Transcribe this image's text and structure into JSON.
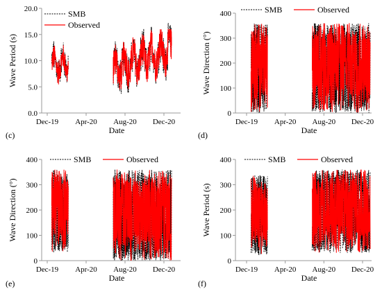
{
  "shared": {
    "x_ticks": [
      "Dec-19",
      "Apr-20",
      "Aug-20",
      "Dec-20"
    ],
    "xlabel": "Date",
    "legend": [
      "SMB",
      "Observed"
    ],
    "colors": {
      "smb": "#000000",
      "observed": "#ff0000"
    },
    "segments": [
      {
        "start": "2019-12-15",
        "end": "2020-02-05"
      },
      {
        "start": "2020-06-25",
        "end": "2020-12-25"
      }
    ]
  },
  "chart_data": [
    {
      "panel": "(c)",
      "type": "line",
      "ylabel": "Wave Period (s)",
      "yticks": [
        "0.0",
        "5.0",
        "10.0",
        "15.0",
        "20.0"
      ],
      "ylim": [
        0,
        20
      ],
      "summary": {
        "segment1_observed_range": [
          5.0,
          13.5
        ],
        "segment2_observed_range": [
          4.5,
          16.0
        ]
      },
      "series": [
        {
          "name": "SMB",
          "x": [
            "2019-12-20",
            "2020-01-05",
            "2020-01-20",
            "2020-02-03",
            "2020-07-01",
            "2020-08-01",
            "2020-09-01",
            "2020-10-01",
            "2020-11-01",
            "2020-12-01",
            "2020-12-20"
          ],
          "values": [
            10.5,
            12.0,
            9.0,
            11.5,
            8.0,
            7.0,
            8.5,
            10.0,
            11.5,
            12.5,
            11.0
          ]
        },
        {
          "name": "Observed",
          "x": [
            "2019-12-20",
            "2020-01-05",
            "2020-01-20",
            "2020-02-03",
            "2020-07-01",
            "2020-08-01",
            "2020-09-01",
            "2020-10-01",
            "2020-11-01",
            "2020-12-01",
            "2020-12-20"
          ],
          "values": [
            10.0,
            11.5,
            8.5,
            11.0,
            7.5,
            6.8,
            8.0,
            9.8,
            11.0,
            12.0,
            10.5
          ]
        }
      ]
    },
    {
      "panel": "(d)",
      "type": "line",
      "ylabel": "Wave Direction (°)",
      "yticks": [
        "0",
        "100",
        "200",
        "300",
        "400"
      ],
      "ylim": [
        0,
        400
      ],
      "summary": {
        "segment1_observed_range": [
          0,
          360
        ],
        "segment2_observed_range": [
          0,
          360
        ]
      },
      "series": [
        {
          "name": "SMB",
          "x": [
            "2019-12-20",
            "2020-01-10",
            "2020-02-01",
            "2020-07-01",
            "2020-08-15",
            "2020-10-01",
            "2020-11-15",
            "2020-12-20"
          ],
          "values": [
            180,
            300,
            100,
            250,
            180,
            200,
            150,
            100
          ]
        },
        {
          "name": "Observed",
          "x": [
            "2019-12-20",
            "2020-01-10",
            "2020-02-01",
            "2020-07-01",
            "2020-08-15",
            "2020-10-01",
            "2020-11-15",
            "2020-12-20"
          ],
          "values": [
            170,
            290,
            110,
            240,
            170,
            190,
            160,
            110
          ]
        }
      ]
    },
    {
      "panel": "(e)",
      "type": "line",
      "ylabel": "Wave Direction (°)",
      "yticks": [
        "0",
        "100",
        "200",
        "300",
        "400"
      ],
      "ylim": [
        0,
        400
      ],
      "summary": {
        "segment1_observed_range": [
          30,
          360
        ],
        "segment2_observed_range": [
          0,
          360
        ]
      },
      "series": [
        {
          "name": "SMB",
          "x": [
            "2019-12-20",
            "2020-01-10",
            "2020-02-01",
            "2020-07-01",
            "2020-08-15",
            "2020-10-01",
            "2020-11-15",
            "2020-12-20"
          ],
          "values": [
            150,
            250,
            200,
            230,
            180,
            200,
            170,
            120
          ]
        },
        {
          "name": "Observed",
          "x": [
            "2019-12-20",
            "2020-01-10",
            "2020-02-01",
            "2020-07-01",
            "2020-08-15",
            "2020-10-01",
            "2020-11-15",
            "2020-12-20"
          ],
          "values": [
            140,
            240,
            190,
            220,
            170,
            190,
            160,
            110
          ]
        }
      ]
    },
    {
      "panel": "(f)",
      "type": "line",
      "ylabel": "Wave Period (s)",
      "yticks": [
        "0",
        "100",
        "200",
        "300",
        "400"
      ],
      "ylim": [
        0,
        400
      ],
      "summary": {
        "segment1_observed_range": [
          20,
          340
        ],
        "segment2_observed_range": [
          30,
          360
        ]
      },
      "series": [
        {
          "name": "SMB",
          "x": [
            "2019-12-20",
            "2020-01-10",
            "2020-02-01",
            "2020-07-01",
            "2020-08-15",
            "2020-10-01",
            "2020-11-15",
            "2020-12-20"
          ],
          "values": [
            150,
            260,
            200,
            210,
            160,
            230,
            180,
            100
          ]
        },
        {
          "name": "Observed",
          "x": [
            "2019-12-20",
            "2020-01-10",
            "2020-02-01",
            "2020-07-01",
            "2020-08-15",
            "2020-10-01",
            "2020-11-15",
            "2020-12-20"
          ],
          "values": [
            140,
            250,
            190,
            200,
            150,
            220,
            170,
            95
          ]
        }
      ]
    }
  ]
}
